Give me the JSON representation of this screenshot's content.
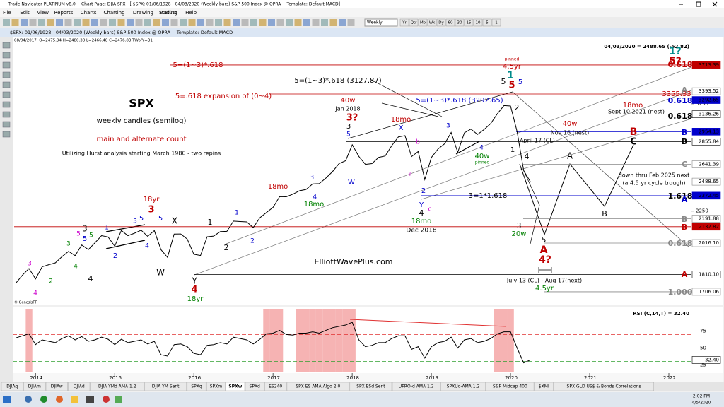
{
  "window_title": "Trade Navigator PLATINUM v8.0 -- Chart Page: DJIA SPX - [ $SPX: 01/06/1928 - 04/03/2020 (Weekly bars) S&P 500 Index @ OPRA -- Template: Default MACD]",
  "menu": [
    "File",
    "Edit",
    "View",
    "Reports",
    "Charts",
    "Charting",
    "Drawing",
    "Trading",
    "Help"
  ],
  "status_label": "Status:",
  "toolbar_period": "Weekly",
  "toolbar_buttons": [
    "Yr",
    "Qtr",
    "Mo",
    "Wk",
    "Dy",
    "60",
    "30",
    "15",
    "10",
    "5",
    "1"
  ],
  "chart_header": "$SPX: 01/06/1928 - 04/03/2020 (Weekly bars) S&P 500 Index @ OPRA -- Template: Default MACD",
  "info_line": "08/04/2017: O=2475.94 H=2480.38 L=2466.48 C=2476.83 TWofY=31",
  "last_price": "04/03/2020 = 2488.65 (-52.82)",
  "watermark": "© GenesisFT",
  "chart_data": {
    "type": "line",
    "categories": [
      null,
      null,
      null,
      null,
      "2014",
      null,
      null,
      null,
      null,
      null,
      null,
      null,
      null,
      null,
      null,
      null,
      "2015",
      null,
      null,
      null,
      null,
      null,
      null,
      null,
      null,
      null,
      null,
      null,
      "2016",
      null,
      null,
      null,
      null,
      null,
      null,
      null,
      null,
      null,
      null,
      null,
      "2017",
      null,
      null,
      null,
      null,
      null,
      null,
      null,
      null,
      null,
      null,
      null,
      "2018",
      null,
      null,
      null,
      null,
      null,
      null,
      null,
      null,
      null,
      null,
      null,
      "2019",
      null,
      null,
      null,
      null,
      null,
      null,
      null,
      null,
      null,
      null,
      null,
      "2020",
      null,
      null,
      null,
      null,
      null,
      null,
      null,
      null,
      null,
      null,
      null,
      "2021",
      null,
      null,
      null,
      null,
      null,
      null,
      null,
      null,
      null,
      null,
      null,
      "2022",
      null,
      null,
      null
    ],
    "series": [
      {
        "color": "#000000",
        "values": [
          1682,
          1757,
          1806,
          1848,
          1783,
          1859,
          1872,
          1884,
          1924,
          1960,
          1931,
          2003,
          1972,
          2018,
          2068,
          2059,
          1995,
          2105,
          2068,
          2086,
          2107,
          2063,
          2104,
          1972,
          1920,
          2079,
          2080,
          2044,
          1940,
          1932,
          2060,
          2065,
          2097,
          2099,
          2174,
          2171,
          2168,
          2126,
          2199,
          2239,
          2279,
          2364,
          2363,
          2384,
          2412,
          2423,
          2470,
          2472,
          2519,
          2575,
          2648,
          2674,
          2824,
          2714,
          2641,
          2648,
          2705,
          2718,
          2816,
          2902,
          2914,
          2712,
          2760,
          2507,
          2704,
          2784,
          2834,
          2946,
          2752,
          2942,
          2980,
          2926,
          2977,
          3038,
          3141,
          3231,
          3226,
          2954,
          2585,
          2488.65,
          null,
          null,
          null,
          null,
          null,
          null,
          null,
          null,
          null,
          null,
          null,
          null,
          null,
          null,
          null,
          null,
          null,
          null,
          null,
          null,
          null,
          null,
          null,
          null
        ]
      },
      {
        "name": "RSI (C,14,T) = 32.40",
        "axis": "y2",
        "color": "#000000",
        "values": [
          60,
          65,
          68,
          71,
          55,
          62,
          60,
          58,
          64,
          68,
          62,
          67,
          60,
          62,
          66,
          63,
          55,
          63,
          58,
          60,
          62,
          56,
          60,
          40,
          38,
          55,
          56,
          52,
          42,
          40,
          54,
          55,
          58,
          56,
          66,
          64,
          62,
          56,
          63,
          71,
          72,
          76,
          70,
          69,
          72,
          72,
          74,
          72,
          76,
          80,
          82,
          84,
          88,
          62,
          52,
          54,
          58,
          58,
          64,
          68,
          68,
          48,
          52,
          35,
          52,
          58,
          60,
          66,
          50,
          62,
          64,
          58,
          60,
          64,
          71,
          74,
          74,
          50,
          28,
          32.4,
          null,
          null,
          null,
          null,
          null,
          null,
          null,
          null,
          null,
          null,
          null,
          null,
          null,
          null,
          null,
          null,
          null,
          null,
          null,
          null,
          null,
          null,
          null,
          null
        ]
      }
    ],
    "log_scale": true,
    "ylim": [
      1637,
      4012
    ],
    "yticks": [
      2250,
      3250
    ],
    "y2lim": [
      14,
      108
    ],
    "y2ticks": [
      75,
      50,
      25,
      {
        "value": 32.4,
        "label": "32.40"
      }
    ],
    "price_levels": [
      {
        "value": 3713.39,
        "color": "#c00000"
      },
      {
        "value": 3393.52,
        "color": "#888888"
      },
      {
        "value": 3292.65,
        "color": "#0000cc"
      },
      {
        "value": 3136.26,
        "color": "#000000"
      },
      {
        "value": 2954.13,
        "color": "#0000cc"
      },
      {
        "value": 2855.84,
        "color": "#000000"
      },
      {
        "value": 2641.39,
        "color": "#888888"
      },
      {
        "value": 2488.65,
        "color": "#888888"
      },
      {
        "value": 2372.45,
        "color": "#0000cc"
      },
      {
        "value": 2191.88,
        "color": "#888888"
      },
      {
        "value": 2132.82,
        "color": "#c00000"
      },
      {
        "value": 2016.1,
        "label": "2016.10",
        "color": "#888888"
      },
      {
        "value": 1810.1,
        "label": "1810.10",
        "color": "#000000"
      },
      {
        "value": 1706.06,
        "color": "#888888"
      }
    ],
    "rsi_levels": [
      {
        "value": 70,
        "color": "#e03030"
      },
      {
        "value": 30,
        "color": "#30a030"
      }
    ]
  },
  "annotations": [
    {
      "text": "SPX",
      "color": "#000000"
    },
    {
      "text": "weekly candles (semilog)",
      "color": "#000000"
    },
    {
      "text": "main and alternate count",
      "color": "#c00000"
    },
    {
      "text": "Utilizing Hurst analysis starting March 1980 - two repins",
      "color": "#000000"
    },
    {
      "text": "ElliottWavePlus.com",
      "color": "#000000"
    },
    {
      "text": "5=(1~3)*.618",
      "color": "#c00000"
    },
    {
      "text": "5=.618 expansion of (0~4)",
      "color": "#c00000"
    },
    {
      "text": "5=(1~3)*.618 (3127.87)",
      "color": "#000000"
    },
    {
      "text": "5=(1~3)*.618 (3292.65)",
      "color": "#0000cc"
    },
    {
      "text": "40w",
      "color": "#c00000"
    },
    {
      "text": "Jan 2018",
      "color": "#000000"
    },
    {
      "text": "3?",
      "color": "#c00000"
    },
    {
      "text": "3",
      "color": "#000000"
    },
    {
      "text": "5",
      "color": "#0000cc"
    },
    {
      "text": "W",
      "color": "#0000cc"
    },
    {
      "text": "18mo",
      "color": "#c00000"
    },
    {
      "text": "X",
      "color": "#0000cc"
    },
    {
      "text": "b",
      "color": "#cc00cc"
    },
    {
      "text": "a",
      "color": "#cc00cc"
    },
    {
      "text": "2",
      "color": "#0000cc"
    },
    {
      "text": "Y",
      "color": "#0000cc"
    },
    {
      "text": "4",
      "color": "#000000"
    },
    {
      "text": "c",
      "color": "#cc00cc"
    },
    {
      "text": "18mo",
      "color": "#008000"
    },
    {
      "text": "Dec 2018",
      "color": "#000000"
    },
    {
      "text": "3",
      "color": "#0000cc"
    },
    {
      "text": "4",
      "color": "#0000cc"
    },
    {
      "text": "40w",
      "color": "#008000"
    },
    {
      "text": "pinned",
      "color": "#008000"
    },
    {
      "text": "pinned",
      "color": "#c00000"
    },
    {
      "text": "4.5yr",
      "color": "#c00000"
    },
    {
      "text": "1",
      "color": "#008b8b"
    },
    {
      "text": "5",
      "color": "#000000"
    },
    {
      "text": "5",
      "color": "#c00000"
    },
    {
      "text": "5",
      "color": "#0000cc"
    },
    {
      "text": "2",
      "color": "#000000"
    },
    {
      "text": "1",
      "color": "#000000"
    },
    {
      "text": "4",
      "color": "#000000"
    },
    {
      "text": "April 17 (CL)",
      "color": "#000000"
    },
    {
      "text": "3=1*1.618",
      "color": "#000000"
    },
    {
      "text": "3",
      "color": "#000000"
    },
    {
      "text": "20w",
      "color": "#008000"
    },
    {
      "text": "5",
      "color": "#000000"
    },
    {
      "text": "A",
      "color": "#c00000"
    },
    {
      "text": "4?",
      "color": "#c00000"
    },
    {
      "text": "July 13 (CL) - Aug 17(next)",
      "color": "#000000"
    },
    {
      "text": "4.5yr",
      "color": "#008000"
    },
    {
      "text": "18mo",
      "color": "#c00000"
    },
    {
      "text": "Sept 10 2021 (nest)",
      "color": "#000000"
    },
    {
      "text": "40w",
      "color": "#c00000"
    },
    {
      "text": "Nov 16 (nest)",
      "color": "#000000"
    },
    {
      "text": "B",
      "color": "#c00000"
    },
    {
      "text": "C",
      "color": "#000000"
    },
    {
      "text": "A",
      "color": "#000000"
    },
    {
      "text": "B",
      "color": "#000000"
    },
    {
      "text": "down thru Feb 2025 next",
      "color": "#000000"
    },
    {
      "text": "(a 4.5 yr cycle trough)",
      "color": "#000000"
    },
    {
      "text": "1?",
      "color": "#008b8b"
    },
    {
      "text": "5?",
      "color": "#c00000"
    },
    {
      "text": "18yr",
      "color": "#c00000"
    },
    {
      "text": "3",
      "color": "#c00000"
    },
    {
      "text": "5",
      "color": "#0000cc"
    },
    {
      "text": "5",
      "color": "#0000cc"
    },
    {
      "text": "X",
      "color": "#000000"
    },
    {
      "text": "W",
      "color": "#000000"
    },
    {
      "text": "1",
      "color": "#000000"
    },
    {
      "text": "2",
      "color": "#000000"
    },
    {
      "text": "1",
      "color": "#0000cc"
    },
    {
      "text": "2",
      "color": "#0000cc"
    },
    {
      "text": "18mo",
      "color": "#c00000"
    },
    {
      "text": "3",
      "color": "#0000cc"
    },
    {
      "text": "4",
      "color": "#0000cc"
    },
    {
      "text": "18mo",
      "color": "#008000"
    },
    {
      "text": "Y",
      "color": "#000000"
    },
    {
      "text": "4",
      "color": "#c00000"
    },
    {
      "text": "18yr",
      "color": "#008000"
    },
    {
      "text": "3",
      "color": "#000000"
    },
    {
      "text": "5",
      "color": "#0000cc"
    },
    {
      "text": "4",
      "color": "#000000"
    },
    {
      "text": "1",
      "color": "#0000cc"
    },
    {
      "text": "2",
      "color": "#0000cc"
    },
    {
      "text": "3",
      "color": "#0000cc"
    },
    {
      "text": "4",
      "color": "#0000cc"
    },
    {
      "text": "3",
      "color": "#cc00cc"
    },
    {
      "text": "4",
      "color": "#cc00cc"
    },
    {
      "text": "2",
      "color": "#008000"
    },
    {
      "text": "5",
      "color": "#008000"
    },
    {
      "text": "5",
      "color": "#cc00cc"
    },
    {
      "text": "4",
      "color": "#008000"
    },
    {
      "text": "3",
      "color": "#008000"
    },
    {
      "text": "3355.33",
      "color": "#c00000"
    },
    {
      "text": "A",
      "color": "#888888"
    },
    {
      "text": "0.618",
      "color": "#0000cc"
    },
    {
      "text": "0.618",
      "color": "#000000"
    },
    {
      "text": "B",
      "color": "#0000cc"
    },
    {
      "text": "B",
      "color": "#000000"
    },
    {
      "text": "C",
      "color": "#888888"
    },
    {
      "text": "1.618",
      "color": "#000000"
    },
    {
      "text": "A",
      "color": "#0000cc"
    },
    {
      "text": "B",
      "color": "#888888"
    },
    {
      "text": "B",
      "color": "#c00000"
    },
    {
      "text": "0.618",
      "color": "#888888"
    },
    {
      "text": "A",
      "color": "#c00000"
    },
    {
      "text": "1.000",
      "color": "#888888"
    },
    {
      "text": "0.618",
      "color": "#c00000"
    }
  ],
  "tabs": [
    "DJIAq",
    "DJIAm",
    "DJIAw",
    "DJIAd",
    "DJIA YMd AMA 1.2",
    "DJIA YM Sent",
    "SPXq",
    "SPXm",
    "SPXw",
    "SPXd",
    "ES240",
    "SPX ES AMA Algo 2.0",
    "SPX ESd Sent",
    "UPRO-d AMA 1.2",
    "SPXUd-AMA 1.2",
    "S&P Midcap 400",
    "$XMI",
    "SPX GLD US$ & Bonds Correlations"
  ],
  "taskbar": {
    "time": "2:02 PM",
    "date": "4/5/2020"
  }
}
